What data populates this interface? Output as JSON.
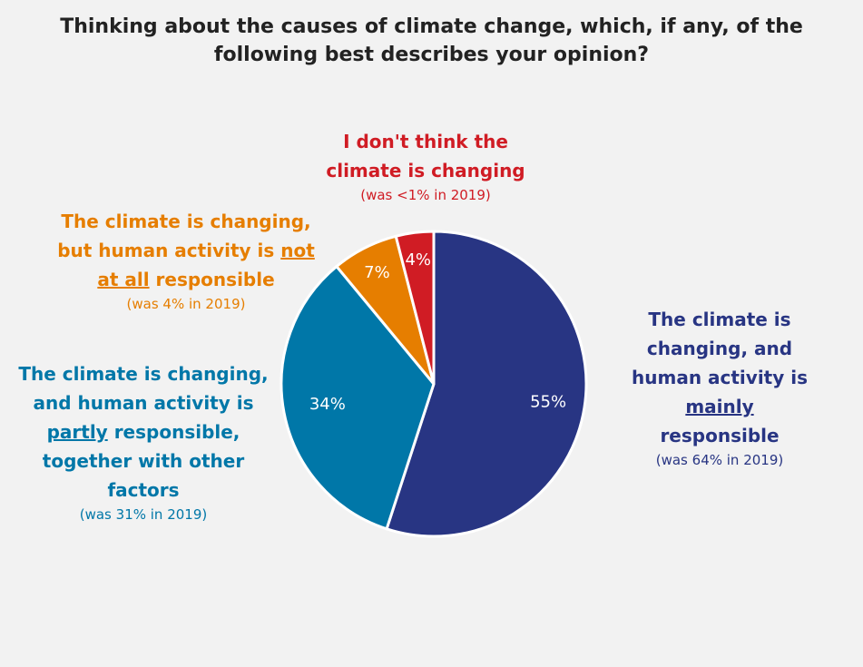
{
  "title": {
    "line1": "Thinking about the causes of climate change, which, if any, of the",
    "line2": "following best describes your opinion?"
  },
  "chart_data": {
    "type": "pie",
    "start_angle_deg": 0,
    "direction": "clockwise",
    "slices": [
      {
        "key": "mainly",
        "value": 55,
        "value_label": "55%",
        "color": "#283583",
        "label_color": "#ffffff",
        "category_lines": [
          "The climate is",
          "changing, and",
          "human activity is",
          "mainly",
          "responsible"
        ],
        "previous": "(was 64% in 2019)",
        "text_color": "#283583"
      },
      {
        "key": "partly",
        "value": 34,
        "value_label": "34%",
        "color": "#0077a8",
        "label_color": "#ffffff",
        "category_lines": [
          "The climate is changing,",
          "and human activity is",
          "partly",
          "responsible,",
          "together with other",
          "factors"
        ],
        "previous": "(was 31% in 2019)",
        "text_color": "#0077a8"
      },
      {
        "key": "not_at_all",
        "value": 7,
        "value_label": "7%",
        "color": "#e67e00",
        "label_color": "#ffffff",
        "category_lines": [
          "The climate is changing,",
          "but human activity is",
          "not",
          "at all",
          "responsible"
        ],
        "previous": "(was 4% in 2019)",
        "text_color": "#e67e00"
      },
      {
        "key": "not_changing",
        "value": 4,
        "value_label": "4%",
        "color": "#d01c24",
        "label_color": "#ffffff",
        "category_lines": [
          "I don't think the",
          "climate is changing"
        ],
        "previous": "(was <1% in 2019)",
        "text_color": "#d01c24"
      }
    ]
  }
}
